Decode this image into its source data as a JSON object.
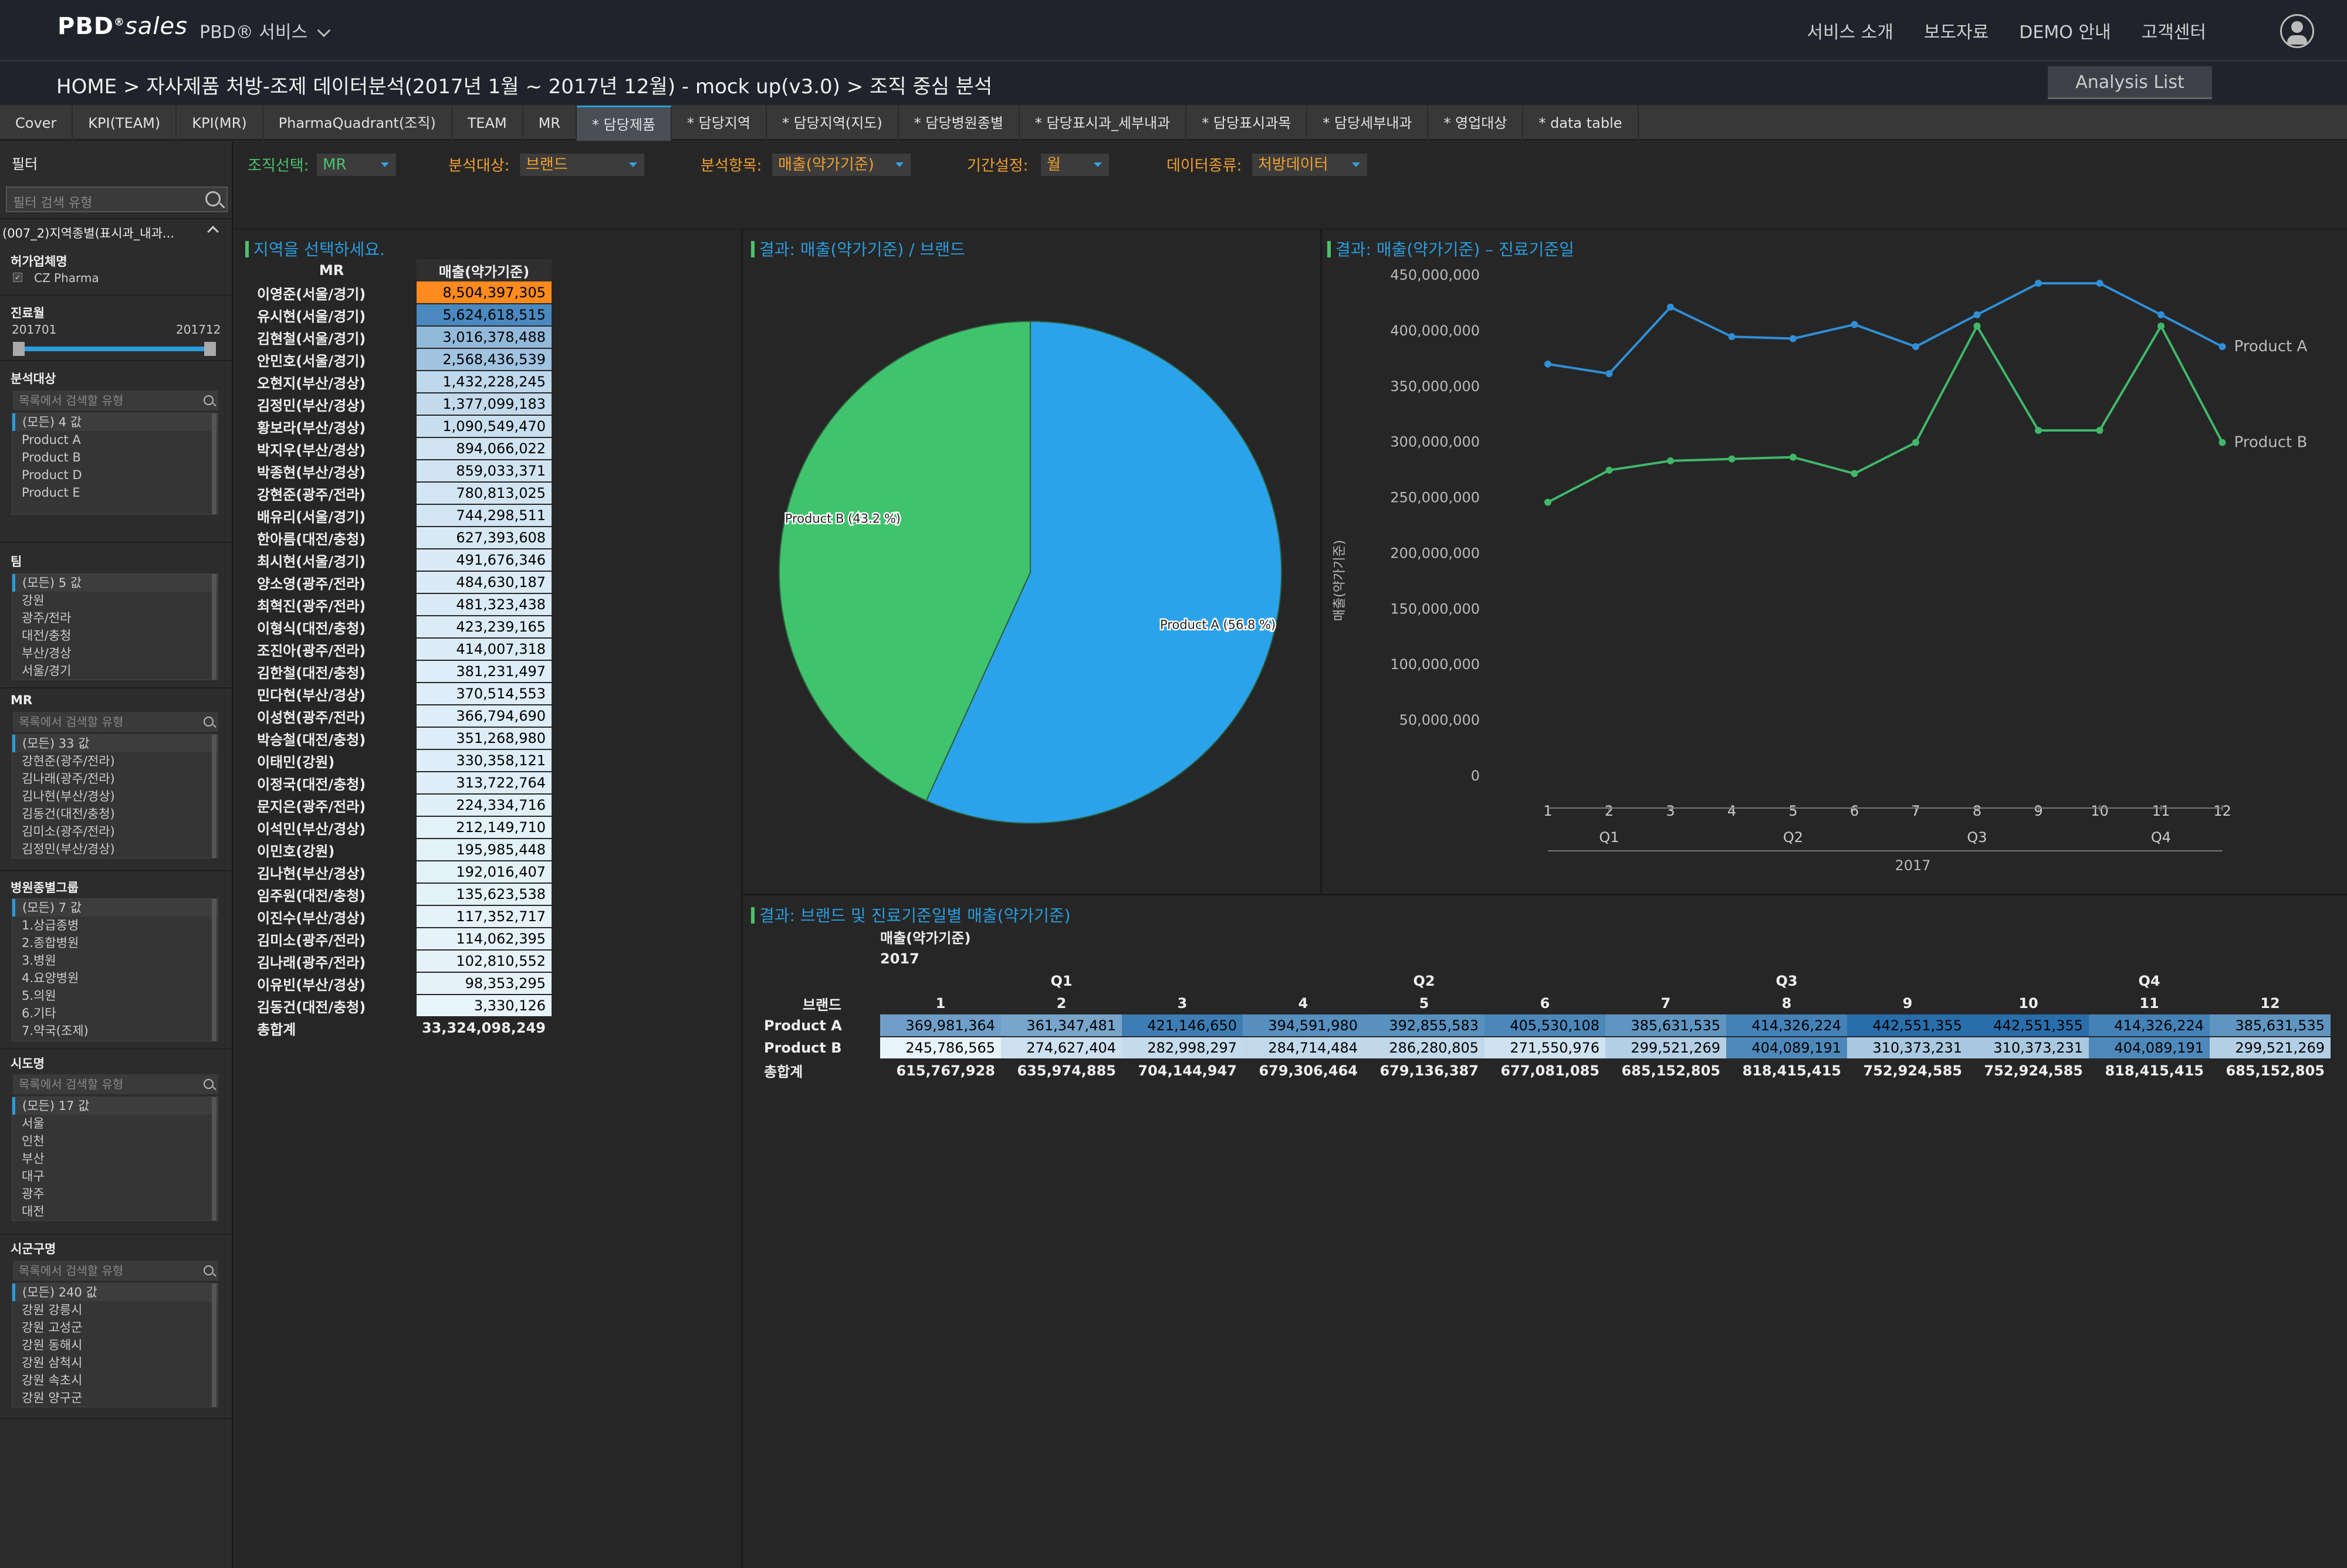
{
  "topbar": {
    "brand": "PBD",
    "brand_sub": "sales",
    "service_menu": "PBD® 서비스",
    "nav": [
      "서비스 소개",
      "보도자료",
      "DEMO 안내",
      "고객센터"
    ]
  },
  "breadcrumb": "HOME >  자사제품 처방-조제 데이터분석(2017년 1월 ~ 2017년 12월) - mock up(v3.0) > 조직 중심 분석",
  "analysis_list": "Analysis List",
  "tabs": [
    "Cover",
    "KPI(TEAM)",
    "KPI(MR)",
    "PharmaQuadrant(조직)",
    "TEAM",
    "MR",
    "* 담당제품",
    "* 담당지역",
    "* 담당지역(지도)",
    "* 담당병원종별",
    "* 담당표시과_세부내과",
    "* 담당표시과목",
    "* 담당세부내과",
    "* 영업대상",
    "* data table"
  ],
  "active_tab": 6,
  "filters": [
    {
      "label": "조직선택:",
      "value": "MR"
    },
    {
      "label": "분석대상:",
      "value": "브랜드"
    },
    {
      "label": "분석항목:",
      "value": "매출(약가기준)"
    },
    {
      "label": "기간설정:",
      "value": "월"
    },
    {
      "label": "데이터종류:",
      "value": "처방데이터"
    }
  ],
  "sidebar": {
    "title": "필터",
    "search_placeholder": "필터 검색 유형",
    "group": "(007_2)지역종별(표시과_내과...",
    "license": {
      "title": "허가업체명",
      "item": "CZ Pharma"
    },
    "period": {
      "title": "진료월",
      "from": "201701",
      "to": "201712"
    },
    "analysis": {
      "title": "분석대상",
      "search": "목록에서 검색할 유형",
      "items": [
        "(모든) 4 값",
        "Product A",
        "Product B",
        "Product D",
        "Product E"
      ]
    },
    "team": {
      "title": "팀",
      "items": [
        "(모든) 5 값",
        "강원",
        "광주/전라",
        "대전/충청",
        "부산/경상",
        "서울/경기"
      ]
    },
    "mr": {
      "title": "MR",
      "search": "목록에서 검색할 유형",
      "items": [
        "(모든) 33 값",
        "강현준(광주/전라)",
        "김나래(광주/전라)",
        "김나현(부산/경상)",
        "김동건(대전/충청)",
        "김미소(광주/전라)",
        "김정민(부산/경상)"
      ]
    },
    "hospital": {
      "title": "병원종별그룹",
      "items": [
        "(모든) 7 값",
        "1.상급종병",
        "2.종합병원",
        "3.병원",
        "4.요양병원",
        "5.의원",
        "6.기타",
        "7.약국(조제)"
      ]
    },
    "sido": {
      "title": "시도명",
      "search": "목록에서 검색할 유형",
      "items": [
        "(모든) 17 값",
        "서울",
        "인천",
        "부산",
        "대구",
        "광주",
        "대전"
      ]
    },
    "sigungu": {
      "title": "시군구명",
      "search": "목록에서 검색할 유형",
      "items": [
        "(모든) 240 값",
        "강원 강릉시",
        "강원 고성군",
        "강원 동해시",
        "강원 삼척시",
        "강원 속초시",
        "강원 양구군"
      ]
    }
  },
  "panel1": {
    "title": "지역을 선택하세요.",
    "col_name": "MR",
    "col_value": "매출(약가기준)",
    "rows": [
      [
        "이영준(서울/경기)",
        "8,504,397,305"
      ],
      [
        "유시현(서울/경기)",
        "5,624,618,515"
      ],
      [
        "김현철(서울/경기)",
        "3,016,378,488"
      ],
      [
        "안민호(서울/경기)",
        "2,568,436,539"
      ],
      [
        "오현지(부산/경상)",
        "1,432,228,245"
      ],
      [
        "김정민(부산/경상)",
        "1,377,099,183"
      ],
      [
        "황보라(부산/경상)",
        "1,090,549,470"
      ],
      [
        "박지우(부산/경상)",
        "894,066,022"
      ],
      [
        "박종현(부산/경상)",
        "859,033,371"
      ],
      [
        "강현준(광주/전라)",
        "780,813,025"
      ],
      [
        "배유리(서울/경기)",
        "744,298,511"
      ],
      [
        "한아름(대전/충청)",
        "627,393,608"
      ],
      [
        "최시현(서울/경기)",
        "491,676,346"
      ],
      [
        "양소영(광주/전라)",
        "484,630,187"
      ],
      [
        "최혁진(광주/전라)",
        "481,323,438"
      ],
      [
        "이형식(대전/충청)",
        "423,239,165"
      ],
      [
        "조진아(광주/전라)",
        "414,007,318"
      ],
      [
        "김한철(대전/충청)",
        "381,231,497"
      ],
      [
        "민다현(부산/경상)",
        "370,514,553"
      ],
      [
        "이성현(광주/전라)",
        "366,794,690"
      ],
      [
        "박승철(대전/충청)",
        "351,268,980"
      ],
      [
        "이태민(강원)",
        "330,358,121"
      ],
      [
        "이정국(대전/충청)",
        "313,722,764"
      ],
      [
        "문지은(광주/전라)",
        "224,334,716"
      ],
      [
        "이석민(부산/경상)",
        "212,149,710"
      ],
      [
        "이민호(강원)",
        "195,985,448"
      ],
      [
        "김나현(부산/경상)",
        "192,016,407"
      ],
      [
        "임주원(대전/충청)",
        "135,623,538"
      ],
      [
        "이진수(부산/경상)",
        "117,352,717"
      ],
      [
        "김미소(광주/전라)",
        "114,062,395"
      ],
      [
        "김나래(광주/전라)",
        "102,810,552"
      ],
      [
        "이유빈(부산/경상)",
        "98,353,295"
      ],
      [
        "김동건(대전/충청)",
        "3,330,126"
      ]
    ],
    "total_label": "총합계",
    "total": "33,324,098,249",
    "shade": [
      1,
      0.66,
      0.36,
      0.3,
      0.17,
      0.16,
      0.13,
      0.1,
      0.1,
      0.09,
      0.09,
      0.07,
      0.06,
      0.06,
      0.06,
      0.05,
      0.05,
      0.04,
      0.04,
      0.04,
      0.04,
      0.04,
      0.04,
      0.03,
      0.02,
      0.02,
      0.02,
      0.02,
      0.01,
      0.01,
      0.01,
      0.01,
      0
    ]
  },
  "panel2": {
    "title": "결과: 매출(약가기준) / 브랜드"
  },
  "panel3": {
    "title": "결과: 매출(약가기준) – 진료기준일"
  },
  "panel4": {
    "title": "결과: 브랜드 및 진료기준일별 매출(약가기준)",
    "measure": "매출(약가기준)",
    "year": "2017",
    "brand_header": "브랜드",
    "quarters": [
      "Q1",
      "Q2",
      "Q3",
      "Q4"
    ],
    "months": [
      "1",
      "2",
      "3",
      "4",
      "5",
      "6",
      "7",
      "8",
      "9",
      "10",
      "11",
      "12"
    ],
    "rows": [
      {
        "name": "Product A",
        "values": [
          "369,981,364",
          "361,347,481",
          "421,146,650",
          "394,591,980",
          "392,855,583",
          "405,530,108",
          "385,631,535",
          "414,326,224",
          "442,551,355",
          "442,551,355",
          "414,326,224",
          "385,631,535"
        ]
      },
      {
        "name": "Product B",
        "values": [
          "245,786,565",
          "274,627,404",
          "282,998,297",
          "284,714,484",
          "286,280,805",
          "271,550,976",
          "299,521,269",
          "404,089,191",
          "310,373,231",
          "310,373,231",
          "404,089,191",
          "299,521,269"
        ]
      }
    ],
    "total_label": "총합계",
    "totals": [
      "615,767,928",
      "635,974,885",
      "704,144,947",
      "679,306,464",
      "679,136,387",
      "677,081,085",
      "685,152,805",
      "818,415,415",
      "752,924,585",
      "752,924,585",
      "818,415,415",
      "685,152,805"
    ]
  },
  "chart_data": [
    {
      "type": "pie",
      "title": "결과: 매출(약가기준) / 브랜드",
      "labels": [
        "Product A",
        "Product B"
      ],
      "values": [
        56.8,
        43.2
      ],
      "slice_labels": [
        "Product A (56.8 %)",
        "Product B (43.2 %)"
      ],
      "colors": [
        "#2ba3ea",
        "#3fc36c"
      ]
    },
    {
      "type": "line",
      "title": "결과: 매출(약가기준) – 진료기준일",
      "x": [
        1,
        2,
        3,
        4,
        5,
        6,
        7,
        8,
        9,
        10,
        11,
        12
      ],
      "x_group_labels": [
        "Q1",
        "Q2",
        "Q3",
        "Q4"
      ],
      "x_year": "2017",
      "ylabel": "매출(약가기준)",
      "ylim": [
        0,
        450000000
      ],
      "yticks": [
        "0",
        "50,000,000",
        "100,000,000",
        "150,000,000",
        "200,000,000",
        "250,000,000",
        "300,000,000",
        "350,000,000",
        "400,000,000",
        "450,000,000"
      ],
      "series": [
        {
          "name": "Product A",
          "color": "#2f8fd8",
          "values": [
            369981364,
            361347481,
            421146650,
            394591980,
            392855583,
            405530108,
            385631535,
            414326224,
            442551355,
            442551355,
            414326224,
            385631535
          ]
        },
        {
          "name": "Product B",
          "color": "#3fb86a",
          "values": [
            245786565,
            274627404,
            282998297,
            284714484,
            286280805,
            271550976,
            299521269,
            404089191,
            310373231,
            310373231,
            404089191,
            299521269
          ]
        }
      ]
    }
  ]
}
